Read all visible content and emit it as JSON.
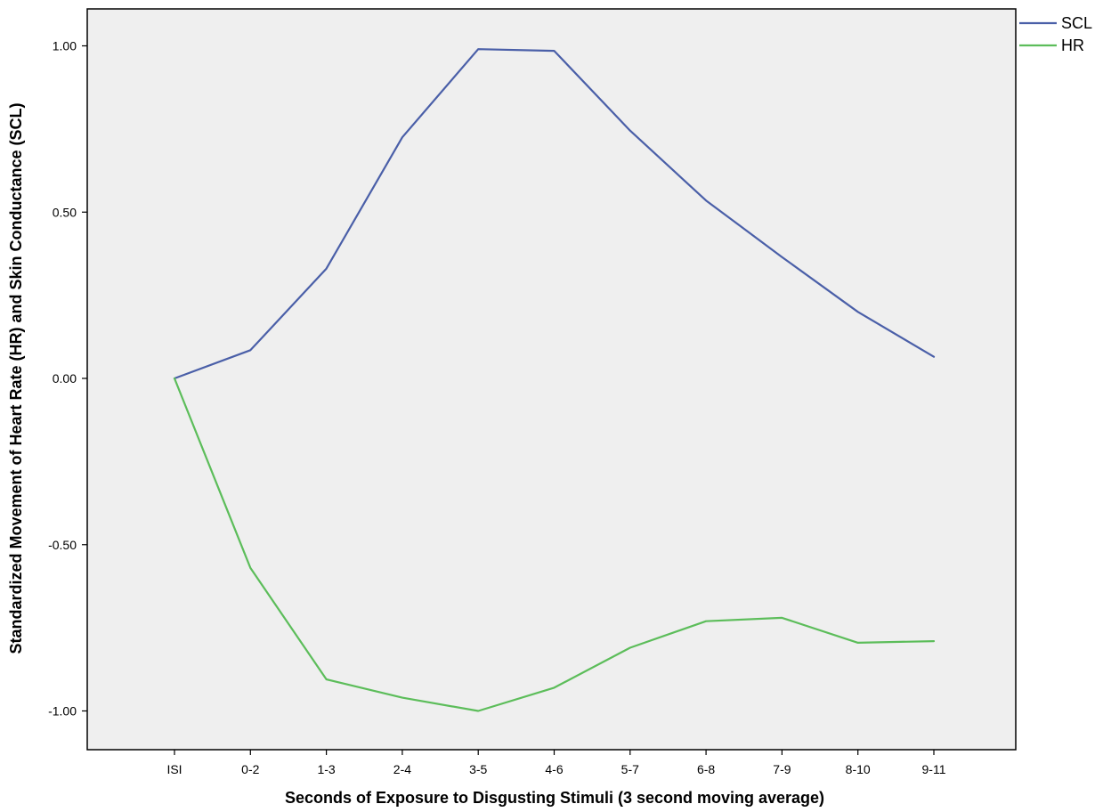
{
  "chart_data": {
    "type": "line",
    "title": "",
    "xlabel": "Seconds of Exposure to Disgusting Stimuli (3 second moving average)",
    "ylabel": "Standardized Movement of Heart Rate (HR) and Skin Conductance (SCL)",
    "categories": [
      "ISI",
      "0-2",
      "1-3",
      "2-4",
      "3-5",
      "4-6",
      "5-7",
      "6-8",
      "7-9",
      "8-10",
      "9-11"
    ],
    "y_ticks": [
      1.0,
      0.5,
      0.0,
      -0.5,
      -1.0
    ],
    "y_tick_labels": [
      "1.00",
      "0.50",
      "0.00",
      "-0.50",
      "-1.00"
    ],
    "ylim": [
      -1.11,
      1.11
    ],
    "grid": false,
    "legend_position": "top-right, outside plot",
    "plot_background": "#efefef",
    "series": [
      {
        "name": "SCL",
        "color": "#4a5fa8",
        "values": [
          0.0,
          0.085,
          0.33,
          0.725,
          0.99,
          0.985,
          0.745,
          0.535,
          0.365,
          0.2,
          0.065
        ]
      },
      {
        "name": "HR",
        "color": "#5cbd5a",
        "values": [
          0.0,
          -0.57,
          -0.905,
          -0.96,
          -1.0,
          -0.93,
          -0.81,
          -0.73,
          -0.72,
          -0.795,
          -0.79
        ]
      }
    ]
  }
}
